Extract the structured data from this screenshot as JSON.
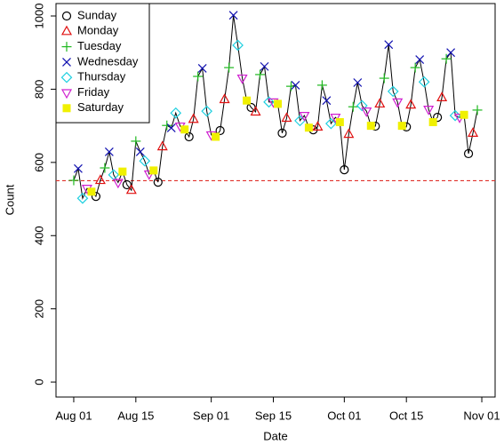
{
  "chart_data": {
    "type": "scatter-line",
    "xlabel": "Date",
    "ylabel": "Count",
    "xlim": [
      "Jul 28",
      "Nov 04"
    ],
    "xticks": [
      "Aug 01",
      "Aug 15",
      "Sep 01",
      "Sep 15",
      "Oct 01",
      "Oct 15",
      "Nov 01"
    ],
    "ylim": [
      -41,
      1034
    ],
    "yticks": [
      0,
      200,
      400,
      600,
      800,
      1000
    ],
    "line_color": "#000000",
    "hline": {
      "value": 550,
      "color": "#e0302a",
      "dashed": true
    },
    "legend": "top-left",
    "series": [
      {
        "name": "Sunday",
        "color": "#000000",
        "marker": "circle",
        "x": [
          "Aug 06",
          "Aug 13",
          "Aug 20",
          "Aug 27",
          "Sep 03",
          "Sep 10",
          "Sep 17",
          "Sep 24",
          "Oct 01",
          "Oct 08",
          "Oct 15",
          "Oct 22",
          "Oct 29"
        ],
        "values": [
          507,
          539,
          546,
          670,
          687,
          750,
          680,
          689,
          580,
          699,
          697,
          723,
          624
        ]
      },
      {
        "name": "Monday",
        "color": "#e01010",
        "marker": "triangle-up",
        "x": [
          "Aug 07",
          "Aug 14",
          "Aug 21",
          "Aug 28",
          "Sep 04",
          "Sep 11",
          "Sep 18",
          "Sep 25",
          "Oct 02",
          "Oct 09",
          "Oct 16",
          "Oct 23",
          "Oct 30"
        ],
        "values": [
          551,
          524,
          643,
          718,
          772,
          738,
          721,
          697,
          677,
          760,
          757,
          777,
          680
        ]
      },
      {
        "name": "Tuesday",
        "color": "#1fb81f",
        "marker": "plus",
        "x": [
          "Aug 01",
          "Aug 08",
          "Aug 15",
          "Aug 22",
          "Aug 29",
          "Sep 05",
          "Sep 12",
          "Sep 19",
          "Sep 26",
          "Oct 03",
          "Oct 10",
          "Oct 17",
          "Oct 24",
          "Oct 31"
        ],
        "values": [
          551,
          585,
          658,
          701,
          835,
          859,
          840,
          808,
          811,
          752,
          830,
          859,
          883,
          743
        ]
      },
      {
        "name": "Wednesday",
        "color": "#1010b0",
        "marker": "cross",
        "x": [
          "Aug 02",
          "Aug 09",
          "Aug 16",
          "Aug 23",
          "Aug 30",
          "Sep 06",
          "Sep 13",
          "Sep 20",
          "Sep 27",
          "Oct 04",
          "Oct 11",
          "Oct 18",
          "Oct 25"
        ],
        "values": [
          583,
          629,
          629,
          694,
          857,
          1002,
          862,
          811,
          769,
          818,
          922,
          881,
          900
        ]
      },
      {
        "name": "Thursday",
        "color": "#20d0e0",
        "marker": "diamond",
        "x": [
          "Aug 03",
          "Aug 10",
          "Aug 17",
          "Aug 24",
          "Aug 31",
          "Sep 07",
          "Sep 14",
          "Sep 21",
          "Sep 28",
          "Oct 05",
          "Oct 12",
          "Oct 19",
          "Oct 26"
        ],
        "values": [
          502,
          566,
          604,
          735,
          740,
          920,
          765,
          714,
          706,
          755,
          794,
          820,
          728
        ]
      },
      {
        "name": "Friday",
        "color": "#d020d0",
        "marker": "triangle-down",
        "x": [
          "Aug 04",
          "Aug 11",
          "Aug 18",
          "Aug 25",
          "Sep 01",
          "Sep 08",
          "Sep 15",
          "Sep 22",
          "Sep 29",
          "Oct 06",
          "Oct 13",
          "Oct 20",
          "Oct 27"
        ],
        "values": [
          529,
          545,
          568,
          699,
          675,
          830,
          765,
          728,
          723,
          740,
          765,
          745,
          723
        ]
      },
      {
        "name": "Saturday",
        "color": "#f0f000",
        "marker": "square",
        "x": [
          "Aug 05",
          "Aug 12",
          "Aug 19",
          "Aug 26",
          "Sep 02",
          "Sep 09",
          "Sep 16",
          "Sep 23",
          "Sep 30",
          "Oct 07",
          "Oct 14",
          "Oct 21",
          "Oct 28"
        ],
        "values": [
          520,
          575,
          578,
          690,
          670,
          769,
          760,
          695,
          710,
          700,
          700,
          710,
          730
        ]
      }
    ]
  }
}
